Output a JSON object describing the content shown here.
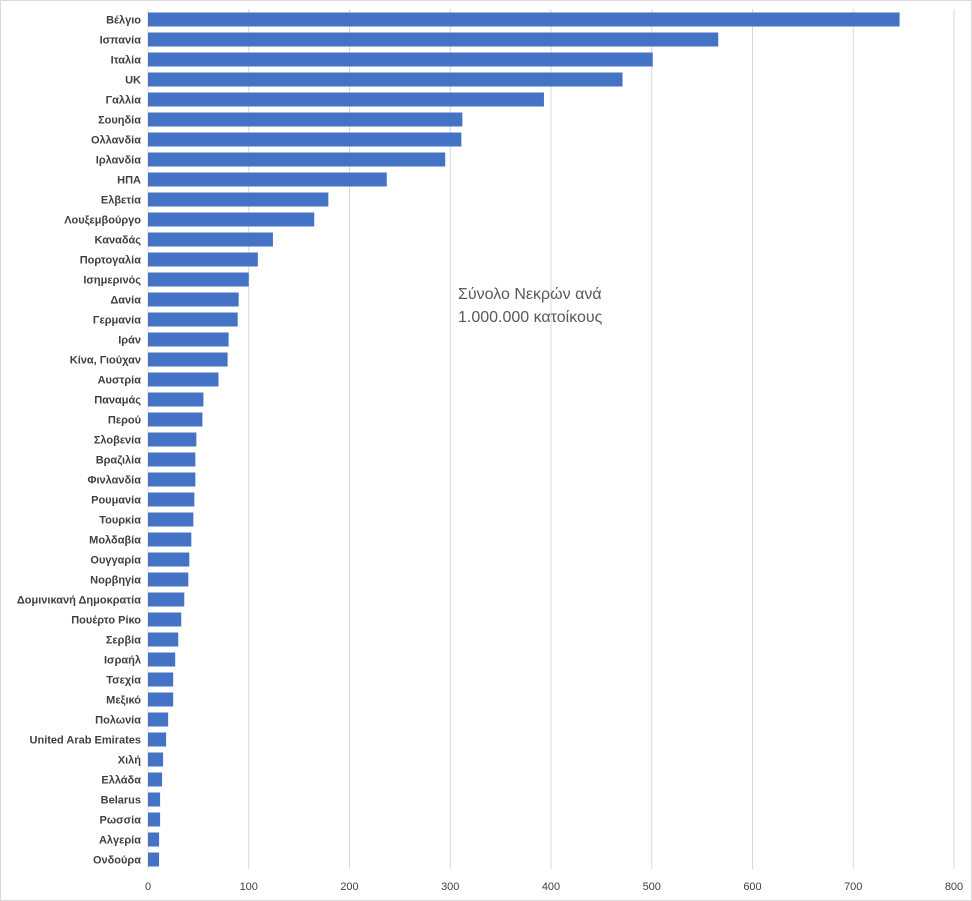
{
  "chart_data": {
    "type": "bar",
    "orientation": "horizontal",
    "title": "",
    "xlabel": "",
    "ylabel": "",
    "annotation_lines": [
      "Σύνολο Νεκρών ανά",
      "1.000.000 κατοίκους"
    ],
    "xlim": [
      0,
      800
    ],
    "xticks": [
      0,
      100,
      200,
      300,
      400,
      500,
      600,
      700,
      800
    ],
    "grid": "vertical",
    "legend": "none",
    "bar_color": "#4472C4",
    "grid_color": "#d9d9d9",
    "categories": [
      "Βέλγιο",
      "Ισπανία",
      "Ιταλία",
      "UK",
      "Γαλλία",
      "Σουηδία",
      "Ολλανδία",
      "Ιρλανδία",
      "ΗΠΑ",
      "Ελβετία",
      "Λουξεμβούργο",
      "Καναδάς",
      "Πορτογαλία",
      "Ισημερινός",
      "Δανία",
      "Γερμανία",
      "Ιράν",
      "Κίνα, Γιούχαν",
      "Αυστρία",
      "Παναμάς",
      "Περού",
      "Σλοβενία",
      "Βραζιλία",
      "Φινλανδία",
      "Ρουμανία",
      "Τουρκία",
      "Μολδαβία",
      "Ουγγαρία",
      "Νορβηγία",
      "Δομινικανή Δημοκρατία",
      "Πουέρτο Ρίκο",
      "Σερβία",
      "Ισραήλ",
      "Τσεχία",
      "Μεξικό",
      "Πολωνία",
      "United Arab Emirates",
      "Χιλή",
      "Ελλάδα",
      "Belarus",
      "Ρωσσία",
      "Αλγερία",
      "Ονδούρα"
    ],
    "values": [
      746,
      566,
      501,
      471,
      393,
      312,
      311,
      295,
      237,
      179,
      165,
      124,
      109,
      100,
      90,
      89,
      80,
      79,
      70,
      55,
      54,
      48,
      47,
      47,
      46,
      45,
      43,
      41,
      40,
      36,
      33,
      30,
      27,
      25,
      25,
      20,
      18,
      15,
      14,
      12,
      12,
      11,
      11
    ]
  }
}
